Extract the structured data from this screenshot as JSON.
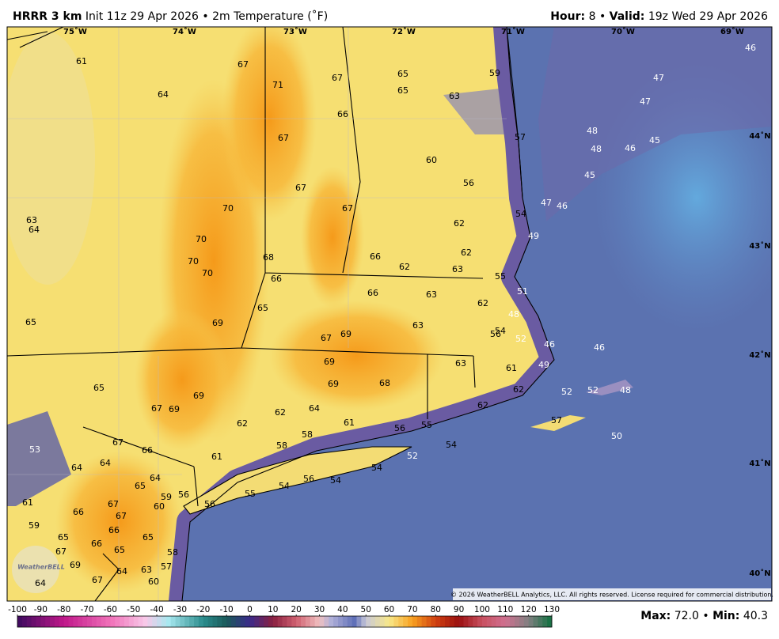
{
  "header": {
    "model": "HRRR 3 km",
    "description": "Init 11z 29 Apr 2026 • 2m Temperature (˚F)",
    "hour_label": "Hour:",
    "hour": "8",
    "separator": "•",
    "valid_label": "Valid:",
    "valid": "19z Wed 29 Apr 2026"
  },
  "map": {
    "longitudes": [
      "75˚W",
      "74˚W",
      "73˚W",
      "72˚W",
      "71˚W",
      "70˚W",
      "69˚W"
    ],
    "latitudes": [
      "44˚N",
      "43˚N",
      "42˚N",
      "41˚N",
      "40˚N"
    ],
    "stations": [
      61,
      64,
      67,
      71,
      67,
      65,
      65,
      63,
      59,
      66,
      67,
      60,
      57,
      56,
      67,
      67,
      70,
      63,
      64,
      70,
      70,
      70,
      68,
      66,
      66,
      62,
      62,
      63,
      62,
      54,
      55,
      65,
      66,
      63,
      62,
      51,
      48,
      54,
      56,
      52,
      65,
      69,
      63,
      67,
      69,
      46,
      46,
      69,
      69,
      68,
      63,
      61,
      49,
      65,
      69,
      67,
      69,
      62,
      64,
      62,
      52,
      52,
      48,
      62,
      61,
      56,
      55,
      62,
      57,
      50,
      67,
      66,
      53,
      58,
      58,
      61,
      64,
      64,
      64,
      65,
      52,
      54,
      54,
      54,
      56,
      54,
      55,
      61,
      66,
      67,
      67,
      60,
      59,
      56,
      56,
      59,
      66,
      65,
      66,
      65,
      65,
      67,
      58,
      69,
      64,
      63,
      57,
      64,
      67,
      60,
      46,
      47,
      47,
      48,
      48,
      46,
      45,
      45,
      47,
      46,
      49
    ],
    "logo": "WeatherBELL",
    "copyright": "© 2026 WeatherBELL Analytics, LLC. All rights reserved. License required for commercial distribution."
  },
  "colorbar": {
    "lim": [
      -100,
      130
    ],
    "ticks": [
      -100,
      -90,
      -80,
      -70,
      -60,
      -50,
      -40,
      -30,
      -20,
      -10,
      0,
      10,
      20,
      30,
      40,
      50,
      60,
      70,
      80,
      90,
      100,
      110,
      120,
      130
    ]
  },
  "footer": {
    "max_label": "Max:",
    "max": "72.0",
    "separator": "•",
    "min_label": "Min:",
    "min": "40.3"
  }
}
